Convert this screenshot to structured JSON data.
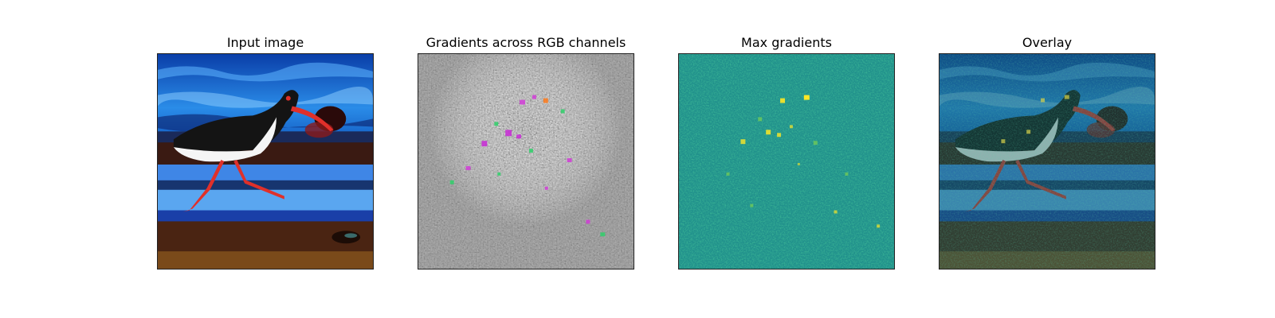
{
  "figure": {
    "panels": [
      {
        "title": "Input image",
        "content": "photo of an oystercatcher-like black-and-white bird with red beak and legs walking on a beach, blue water behind"
      },
      {
        "title": "Gradients across RGB channels",
        "content": "noisy gray saliency texture with magenta and green speckles"
      },
      {
        "title": "Max gradients",
        "content": "teal viridis-style saliency map with yellow bright spots"
      },
      {
        "title": "Overlay",
        "content": "darkened input image blended with teal saliency map"
      }
    ]
  },
  "colors": {
    "sky_blue": "#1b78d8",
    "deep_blue": "#0a2f8a",
    "sand_brown": "#4a2412",
    "bird_black": "#141414",
    "beak_red": "#e0302a",
    "grad_gray": "#8a8a8a",
    "viridis_teal": "#21918c",
    "viridis_yellow": "#fde725"
  }
}
